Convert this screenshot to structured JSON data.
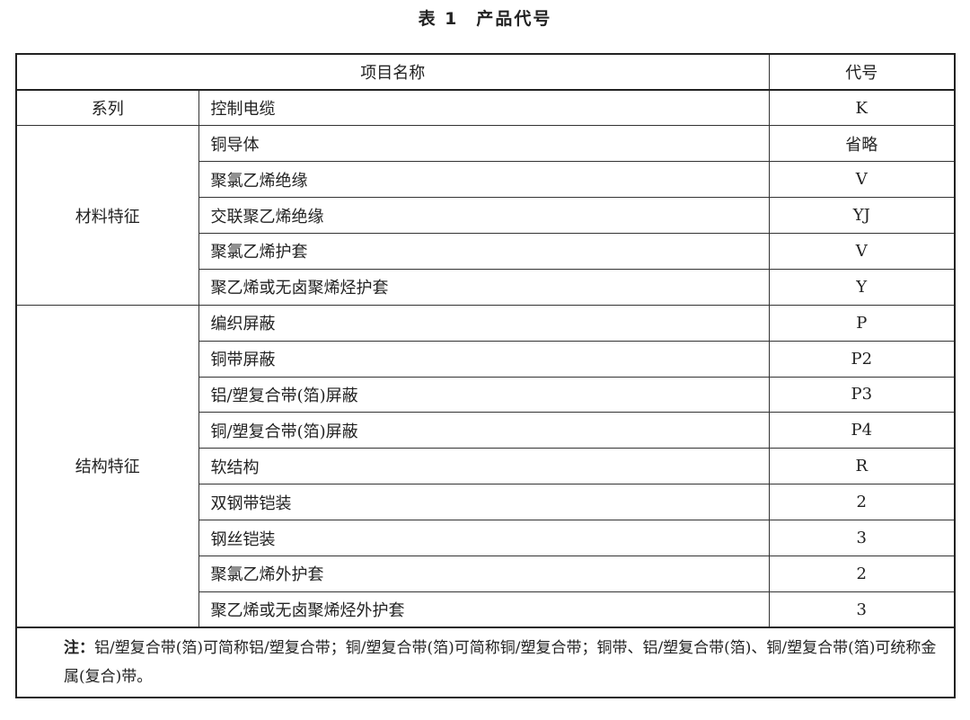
{
  "title": {
    "number": "表 1",
    "text": "产品代号"
  },
  "table": {
    "headers": {
      "name": "项目名称",
      "code": "代号"
    },
    "groups": [
      {
        "label": "系列",
        "rows": [
          {
            "name": "控制电缆",
            "code": "K"
          }
        ]
      },
      {
        "label": "材料特征",
        "rows": [
          {
            "name": "铜导体",
            "code": "省略"
          },
          {
            "name": "聚氯乙烯绝缘",
            "code": "V"
          },
          {
            "name": "交联聚乙烯绝缘",
            "code": "YJ"
          },
          {
            "name": "聚氯乙烯护套",
            "code": "V"
          },
          {
            "name": "聚乙烯或无卤聚烯烃护套",
            "code": "Y"
          }
        ]
      },
      {
        "label": "结构特征",
        "rows": [
          {
            "name": "编织屏蔽",
            "code": "P"
          },
          {
            "name": "铜带屏蔽",
            "code": "P2"
          },
          {
            "name": "铝/塑复合带(箔)屏蔽",
            "code": "P3"
          },
          {
            "name": "铜/塑复合带(箔)屏蔽",
            "code": "P4"
          },
          {
            "name": "软结构",
            "code": "R"
          },
          {
            "name": "双钢带铠装",
            "code": "2"
          },
          {
            "name": "钢丝铠装",
            "code": "3"
          },
          {
            "name": "聚氯乙烯外护套",
            "code": "2"
          },
          {
            "name": "聚乙烯或无卤聚烯烃外护套",
            "code": "3"
          }
        ]
      }
    ],
    "note": {
      "label": "注：",
      "text": "铝/塑复合带(箔)可简称铝/塑复合带；铜/塑复合带(箔)可简称铜/塑复合带；铜带、铝/塑复合带(箔)、铜/塑复合带(箔)可统称金属(复合)带。"
    }
  }
}
